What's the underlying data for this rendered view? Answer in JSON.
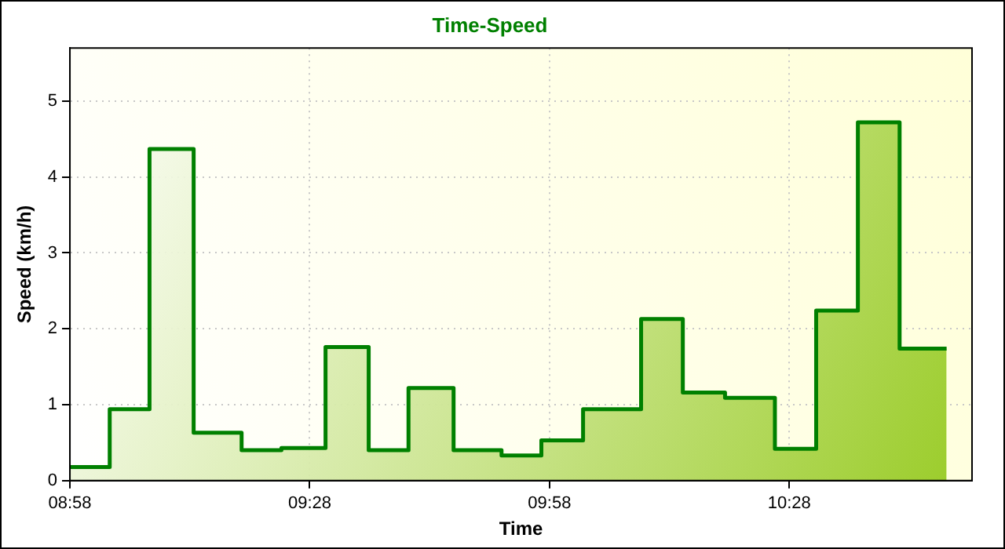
{
  "chart_data": {
    "type": "area",
    "title": "Time-Speed",
    "xlabel": "Time",
    "ylabel": "Speed (km/h)",
    "x": [
      8.967,
      9.05,
      9.05,
      9.133,
      9.133,
      9.225,
      9.225,
      9.325,
      9.325,
      9.408,
      9.408,
      9.5,
      9.5,
      9.59,
      9.59,
      9.673,
      9.673,
      9.767,
      9.767,
      9.867,
      9.867,
      9.95,
      9.95,
      10.037,
      10.037,
      10.158,
      10.158,
      10.245,
      10.245,
      10.333,
      10.333,
      10.437,
      10.437,
      10.523,
      10.523,
      10.61,
      10.61,
      10.697,
      10.697,
      10.795
    ],
    "series": [
      {
        "color": "#008000",
        "values": [
          0.18,
          0.18,
          0.94,
          0.94,
          4.37,
          4.37,
          0.63,
          0.63,
          0.4,
          0.4,
          0.43,
          0.43,
          1.76,
          1.76,
          0.4,
          0.4,
          1.22,
          1.22,
          0.4,
          0.4,
          0.33,
          0.33,
          0.53,
          0.53,
          0.94,
          0.94,
          2.13,
          2.13,
          1.16,
          1.16,
          1.09,
          1.09,
          0.42,
          0.42,
          2.24,
          2.24,
          4.72,
          4.72,
          1.74,
          1.74
        ]
      }
    ],
    "xlim": [
      8.967,
      10.848
    ],
    "xticks": [
      {
        "value": 8.967,
        "label": "08:58"
      },
      {
        "value": 9.467,
        "label": "09:28"
      },
      {
        "value": 9.967,
        "label": "09:58"
      },
      {
        "value": 10.467,
        "label": "10:28"
      }
    ],
    "ylim": [
      0,
      5.7
    ],
    "yticks": [
      0,
      1,
      2,
      3,
      4,
      5
    ],
    "grid": true,
    "legend": false
  }
}
